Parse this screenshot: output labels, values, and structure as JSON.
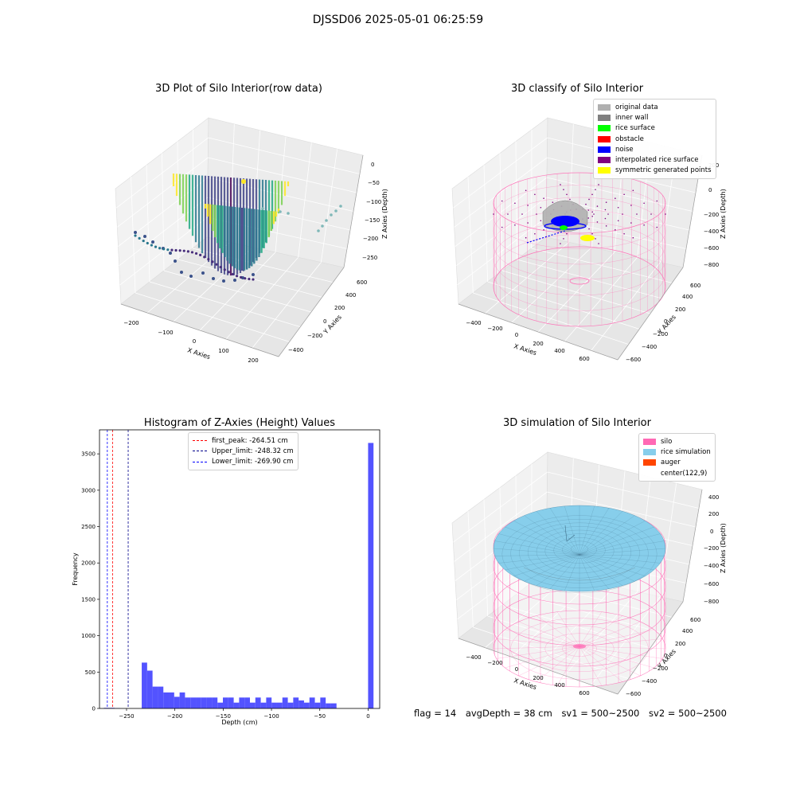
{
  "suptitle": "DJSSD06 2025-05-01 06:25:59",
  "colors": {
    "viridis": [
      "#440154",
      "#414487",
      "#2a788e",
      "#22a884",
      "#7ad151",
      "#fde725"
    ],
    "silo_pink": "#ff69b4",
    "rice_blue": "#87ceeb",
    "hist_blue": "#4040ff"
  },
  "panels": {
    "raw": {
      "title": "3D Plot of Silo Interior(row data)",
      "xlabel": "X Axies",
      "ylabel": "Y Axies",
      "zlabel": "Z Axies (Depth)",
      "xticks": [
        "−200",
        "−100",
        "0",
        "100",
        "200"
      ],
      "yticks": [
        "−400",
        "−200",
        "0",
        "200",
        "400",
        "600"
      ],
      "zticks": [
        "0",
        "−50",
        "−100",
        "−150",
        "−200",
        "−250"
      ]
    },
    "classify": {
      "title": "3D classify of Silo Interior",
      "xlabel": "X Axies",
      "ylabel": "Y Axies",
      "zlabel": "Z Axies (Depth)",
      "xticks": [
        "−400",
        "−200",
        "0",
        "200",
        "400",
        "600"
      ],
      "yticks": [
        "−600",
        "−400",
        "−200",
        "0",
        "200",
        "400",
        "600"
      ],
      "zticks": [
        "200",
        "0",
        "−200",
        "−400",
        "−600",
        "−800"
      ],
      "legend": [
        {
          "label": "original data",
          "color": "#b0b0b0"
        },
        {
          "label": "inner wall",
          "color": "#808080"
        },
        {
          "label": "rice surface",
          "color": "#00ff00"
        },
        {
          "label": "obstacle",
          "color": "#ff0000"
        },
        {
          "label": "noise",
          "color": "#0000ff"
        },
        {
          "label": "interpolated rice surface",
          "color": "#800080"
        },
        {
          "label": "symmetric generated points",
          "color": "#ffff00"
        }
      ]
    },
    "simulation": {
      "title": "3D simulation of Silo Interior",
      "xlabel": "X Axies",
      "ylabel": "Y Axies",
      "zlabel": "Z Axies (Depth)",
      "xticks": [
        "−400",
        "−200",
        "0",
        "200",
        "400",
        "600"
      ],
      "yticks": [
        "−600",
        "−400",
        "−200",
        "0",
        "200",
        "400",
        "600"
      ],
      "zticks": [
        "400",
        "200",
        "0",
        "−200",
        "−400",
        "−600",
        "−800"
      ],
      "legend": [
        {
          "label": "silo",
          "color": "#ff69b4"
        },
        {
          "label": "rice simulation",
          "color": "#87ceeb"
        },
        {
          "label": "auger",
          "color": "#ff4500"
        },
        {
          "label": "center(122,9)",
          "color": ""
        }
      ]
    }
  },
  "footer": {
    "flag": "flag = 14",
    "avg": "avgDepth = 38 cm",
    "sv1": "sv1 = 500~2500",
    "sv2": "sv2 = 500~2500"
  },
  "chart_data": [
    {
      "type": "bar",
      "title": "Histogram of Z-Axies (Height) Values",
      "xlabel": "Depth (cm)",
      "ylabel": "Frequency",
      "xlim": [
        -278,
        12
      ],
      "ylim": [
        0,
        3830
      ],
      "xticks": [
        -250,
        -200,
        -150,
        -100,
        -50,
        0
      ],
      "xtick_labels": [
        "−250",
        "−200",
        "−150",
        "−100",
        "−50",
        "0"
      ],
      "yticks": [
        0,
        500,
        1000,
        1500,
        2000,
        2500,
        3000,
        3500
      ],
      "bin_width": 5.6,
      "bins": [
        {
          "x": -273.5,
          "v": 8
        },
        {
          "x": -267.9,
          "v": 8
        },
        {
          "x": -262.3,
          "v": 5
        },
        {
          "x": -234.3,
          "v": 630
        },
        {
          "x": -228.7,
          "v": 520
        },
        {
          "x": -223.1,
          "v": 300
        },
        {
          "x": -217.5,
          "v": 300
        },
        {
          "x": -211.9,
          "v": 220
        },
        {
          "x": -206.3,
          "v": 220
        },
        {
          "x": -200.7,
          "v": 160
        },
        {
          "x": -195.1,
          "v": 220
        },
        {
          "x": -189.5,
          "v": 150
        },
        {
          "x": -183.9,
          "v": 150
        },
        {
          "x": -178.3,
          "v": 150
        },
        {
          "x": -172.7,
          "v": 150
        },
        {
          "x": -167.1,
          "v": 150
        },
        {
          "x": -161.5,
          "v": 150
        },
        {
          "x": -155.9,
          "v": 80
        },
        {
          "x": -150.3,
          "v": 150
        },
        {
          "x": -144.7,
          "v": 150
        },
        {
          "x": -139.1,
          "v": 80
        },
        {
          "x": -133.5,
          "v": 150
        },
        {
          "x": -127.9,
          "v": 150
        },
        {
          "x": -122.3,
          "v": 80
        },
        {
          "x": -116.7,
          "v": 150
        },
        {
          "x": -111.1,
          "v": 80
        },
        {
          "x": -105.5,
          "v": 150
        },
        {
          "x": -99.9,
          "v": 80
        },
        {
          "x": -94.3,
          "v": 80
        },
        {
          "x": -88.7,
          "v": 150
        },
        {
          "x": -83.1,
          "v": 80
        },
        {
          "x": -77.5,
          "v": 150
        },
        {
          "x": -71.9,
          "v": 110
        },
        {
          "x": -66.3,
          "v": 80
        },
        {
          "x": -60.7,
          "v": 150
        },
        {
          "x": -55.1,
          "v": 80
        },
        {
          "x": -49.5,
          "v": 150
        },
        {
          "x": -43.9,
          "v": 70
        },
        {
          "x": -38.3,
          "v": 70
        },
        {
          "x": 0.0,
          "v": 3650
        }
      ],
      "vlines": [
        {
          "label": "first_peak: -264.51 cm",
          "x": -264.51,
          "color": "#ff0000"
        },
        {
          "label": "Upper_limit: -248.32 cm",
          "x": -248.32,
          "color": "#00008b"
        },
        {
          "label": "Lower_limit: -269.90 cm",
          "x": -269.9,
          "color": "#0000ff"
        }
      ],
      "legend_position": "top-center"
    }
  ]
}
